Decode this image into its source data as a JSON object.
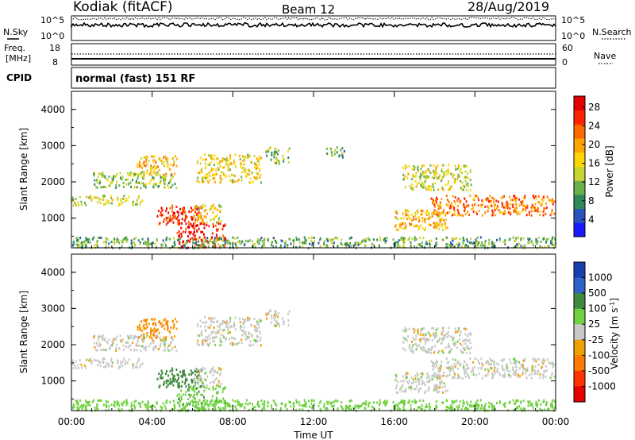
{
  "header": {
    "station": "Kodiak (fitACF)",
    "beam": "Beam 12",
    "date": "28/Aug/2019"
  },
  "top_panels": {
    "nsky_label": "N.Sky",
    "nsearch_label": "N.Search",
    "noise_ticks": [
      "10^5",
      "10^0"
    ],
    "freq_label": "Freq.",
    "freq_unit": "[MHz]",
    "freq_ticks": [
      "18",
      "8"
    ],
    "nave_label": "Nave",
    "nave_ticks": [
      "60",
      "0"
    ],
    "cpid_label": "CPID",
    "cpid_value": "normal (fast) 151 RF"
  },
  "chart_data": [
    {
      "type": "heatmap",
      "name": "power",
      "ylabel": "Slant Range [km]",
      "xlabel": "",
      "x_ticks": [
        "00:00",
        "04:00",
        "08:00",
        "12:00",
        "16:00",
        "20:00",
        "00:00"
      ],
      "x_range_hours": [
        0,
        24
      ],
      "y_ticks": [
        1000,
        2000,
        3000,
        4000
      ],
      "ylim": [
        180,
        4500
      ],
      "colorbar": {
        "label": "Power [dB]",
        "ticks": [
          "4",
          "8",
          "12",
          "16",
          "20",
          "24",
          "28"
        ],
        "range": [
          0,
          30
        ],
        "colors": [
          "#1a1aff",
          "#2a52be",
          "#2e8b57",
          "#6ab04c",
          "#c8d432",
          "#ffd700",
          "#ffa500",
          "#ff6a00",
          "#ff2200",
          "#e60000"
        ]
      },
      "regions": [
        {
          "t0": 0.0,
          "t1": 3.5,
          "r0": 1380,
          "r1": 1650,
          "v": 14
        },
        {
          "t0": 1.0,
          "t1": 5.2,
          "r0": 1850,
          "r1": 2300,
          "v": 12
        },
        {
          "t0": 3.2,
          "t1": 5.2,
          "r0": 2200,
          "r1": 2750,
          "v": 18
        },
        {
          "t0": 4.2,
          "t1": 6.4,
          "r0": 850,
          "r1": 1400,
          "v": 26
        },
        {
          "t0": 5.2,
          "t1": 7.6,
          "r0": 200,
          "r1": 900,
          "v": 27
        },
        {
          "t0": 6.0,
          "t1": 7.4,
          "r0": 900,
          "r1": 1400,
          "v": 16
        },
        {
          "t0": 6.2,
          "t1": 9.4,
          "r0": 2000,
          "r1": 2800,
          "v": 16
        },
        {
          "t0": 9.6,
          "t1": 10.8,
          "r0": 2500,
          "r1": 3000,
          "v": 12
        },
        {
          "t0": 12.6,
          "t1": 13.6,
          "r0": 2700,
          "r1": 3000,
          "v": 10
        },
        {
          "t0": 16.0,
          "t1": 18.6,
          "r0": 700,
          "r1": 1250,
          "v": 18
        },
        {
          "t0": 16.4,
          "t1": 19.8,
          "r0": 1800,
          "r1": 2500,
          "v": 14
        },
        {
          "t0": 17.8,
          "t1": 24.0,
          "r0": 1100,
          "r1": 1650,
          "v": 22
        },
        {
          "t0": 0.0,
          "t1": 24.0,
          "r0": 200,
          "r1": 500,
          "v": 10
        }
      ]
    },
    {
      "type": "heatmap",
      "name": "velocity",
      "ylabel": "Slant Range [km]",
      "xlabel": "Time UT",
      "x_ticks": [
        "00:00",
        "04:00",
        "08:00",
        "12:00",
        "16:00",
        "20:00",
        "00:00"
      ],
      "x_range_hours": [
        0,
        24
      ],
      "y_ticks": [
        1000,
        2000,
        3000,
        4000
      ],
      "ylim": [
        180,
        4500
      ],
      "colorbar": {
        "label": "Velocity [m s^-1]",
        "ticks": [
          "1000",
          "500",
          "100",
          "25",
          "-25",
          "-100",
          "-500",
          "-1000"
        ],
        "colors": [
          "#1a3fb0",
          "#2e62c8",
          "#3f8a3f",
          "#6fd13f",
          "#c8c8c8",
          "#f0a000",
          "#ff7a00",
          "#ff3300",
          "#e60000"
        ]
      },
      "regions": [
        {
          "t0": 0.0,
          "t1": 3.5,
          "r0": 1380,
          "r1": 1650,
          "v": 0
        },
        {
          "t0": 1.0,
          "t1": 5.2,
          "r0": 1850,
          "r1": 2300,
          "v": 0
        },
        {
          "t0": 3.2,
          "t1": 5.2,
          "r0": 2200,
          "r1": 2750,
          "v": -100
        },
        {
          "t0": 4.2,
          "t1": 6.4,
          "r0": 850,
          "r1": 1400,
          "v": 400
        },
        {
          "t0": 5.2,
          "t1": 7.6,
          "r0": 200,
          "r1": 900,
          "v": 80
        },
        {
          "t0": 6.0,
          "t1": 7.4,
          "r0": 900,
          "r1": 1400,
          "v": 0
        },
        {
          "t0": 6.2,
          "t1": 9.4,
          "r0": 2000,
          "r1": 2800,
          "v": 0
        },
        {
          "t0": 9.6,
          "t1": 10.8,
          "r0": 2500,
          "r1": 3000,
          "v": 0
        },
        {
          "t0": 16.0,
          "t1": 18.6,
          "r0": 700,
          "r1": 1250,
          "v": 0
        },
        {
          "t0": 16.4,
          "t1": 19.8,
          "r0": 1800,
          "r1": 2500,
          "v": 0
        },
        {
          "t0": 17.8,
          "t1": 24.0,
          "r0": 1100,
          "r1": 1650,
          "v": 0
        },
        {
          "t0": 0.0,
          "t1": 24.0,
          "r0": 200,
          "r1": 500,
          "v": 60
        }
      ]
    }
  ]
}
